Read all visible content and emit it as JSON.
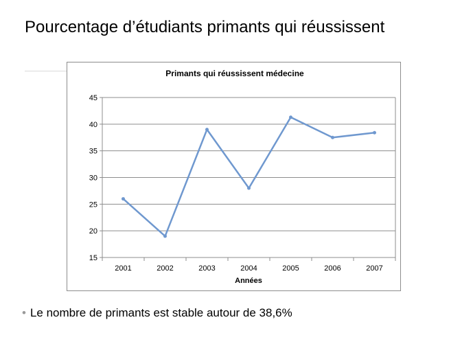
{
  "slide": {
    "title": "Pourcentage d’étudiants primants qui réussissent",
    "bullet": "Le nombre de primants est stable autour de 38,6%"
  },
  "colors": {
    "line": "#6f98cf",
    "gridline": "#8c8c8c",
    "text": "#000000"
  },
  "chart_data": {
    "type": "line",
    "title": "Primants qui réussissent médecine",
    "xlabel": "Années",
    "ylabel": "",
    "categories": [
      "2001",
      "2002",
      "2003",
      "2004",
      "2005",
      "2006",
      "2007"
    ],
    "series": [
      {
        "values": [
          26,
          19,
          39,
          28,
          41.3,
          37.5,
          38.4
        ]
      }
    ],
    "ylim": [
      15,
      45
    ],
    "yticks": [
      "15",
      "20",
      "25",
      "30",
      "35",
      "40",
      "45"
    ],
    "grid": true,
    "legend": "none"
  }
}
